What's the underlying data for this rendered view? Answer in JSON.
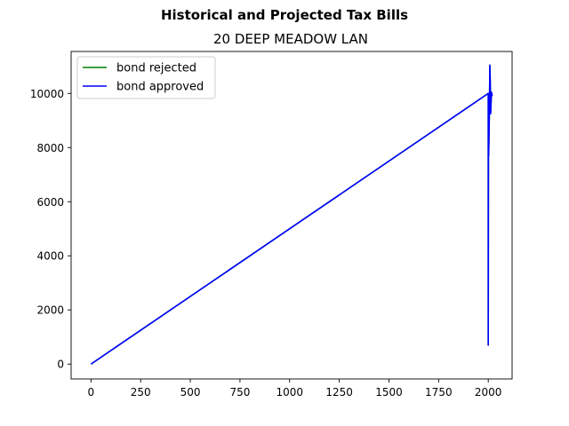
{
  "suptitle": "Historical and Projected Tax Bills",
  "chart_data": {
    "type": "line",
    "title": "20 DEEP MEADOW LAN",
    "xlabel": "",
    "ylabel": "",
    "xlim": [
      -100,
      2120
    ],
    "ylim": [
      -550,
      11550
    ],
    "grid": false,
    "legend_position": "top-left",
    "x_ticks": [
      0,
      250,
      500,
      750,
      1000,
      1250,
      1500,
      1750,
      2000
    ],
    "x_tick_labels": [
      "0",
      "250",
      "500",
      "750",
      "1000",
      "1250",
      "1500",
      "1750",
      "2000"
    ],
    "y_ticks": [
      0,
      2000,
      4000,
      6000,
      8000,
      10000
    ],
    "y_tick_labels": [
      "0",
      "2000",
      "4000",
      "6000",
      "8000",
      "10000"
    ],
    "series": [
      {
        "name": "bond rejected",
        "color": "#008000",
        "points": [
          [
            0,
            0
          ],
          [
            2000,
            10000
          ],
          [
            2000,
            700
          ],
          [
            2001,
            8500
          ],
          [
            2002,
            7700
          ],
          [
            2006,
            9500
          ],
          [
            2008,
            11000
          ],
          [
            2010,
            10400
          ],
          [
            2012,
            9300
          ],
          [
            2016,
            10000
          ],
          [
            2020,
            10000
          ]
        ]
      },
      {
        "name": "bond approved",
        "color": "#0000ff",
        "points": [
          [
            0,
            0
          ],
          [
            2000,
            10000
          ],
          [
            2000,
            700
          ],
          [
            2001,
            8500
          ],
          [
            2002,
            7700
          ],
          [
            2006,
            9500
          ],
          [
            2008,
            11050
          ],
          [
            2010,
            10400
          ],
          [
            2012,
            9250
          ],
          [
            2016,
            10050
          ],
          [
            2020,
            9900
          ]
        ]
      }
    ]
  }
}
